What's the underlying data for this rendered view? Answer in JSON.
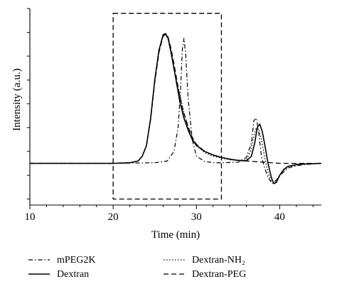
{
  "chart_data": {
    "type": "line",
    "title": "",
    "xlabel": "Time (min)",
    "ylabel": "Intensity (a.u.)",
    "xlim": [
      10,
      45
    ],
    "xticks": [
      10,
      20,
      30,
      40
    ],
    "ylim": [
      -0.35,
      1.3
    ],
    "y_tick_labels": false,
    "grid": false,
    "legend_position": "bottom",
    "highlight_box": {
      "x": [
        20,
        33
      ],
      "y": [
        -0.3,
        1.26
      ],
      "style": "dashed"
    },
    "series": [
      {
        "name": "mPEG2K",
        "style": "dash-dot",
        "x": [
          10,
          20,
          25,
          26.5,
          27.3,
          27.8,
          28.1,
          28.3,
          28.5,
          28.7,
          29,
          29.5,
          30,
          31,
          32,
          33,
          35,
          36,
          36.6,
          36.9,
          37.2,
          37.5,
          37.8,
          38.2,
          38.6,
          39.1,
          39.6,
          40.2,
          41,
          42,
          43,
          45
        ],
        "y": [
          0,
          0,
          0.005,
          0.02,
          0.1,
          0.3,
          0.62,
          0.95,
          1.05,
          0.92,
          0.55,
          0.2,
          0.06,
          0.015,
          0.006,
          0.004,
          0.01,
          0.05,
          0.17,
          0.36,
          0.38,
          0.25,
          0.06,
          -0.04,
          -0.12,
          -0.17,
          -0.14,
          -0.09,
          -0.04,
          -0.02,
          -0.01,
          0
        ]
      },
      {
        "name": "Dextran",
        "style": "solid",
        "x": [
          10,
          20,
          22,
          23,
          23.5,
          24,
          24.5,
          25,
          25.5,
          26,
          26.3,
          26.6,
          27,
          27.5,
          28,
          28.5,
          29,
          29.5,
          30,
          31,
          32,
          33,
          34,
          35,
          36,
          36.6,
          37,
          37.3,
          37.6,
          37.9,
          38.2,
          38.6,
          39,
          39.3,
          39.6,
          40,
          40.5,
          41,
          42,
          43,
          45
        ],
        "y": [
          0,
          0,
          0.005,
          0.02,
          0.06,
          0.15,
          0.38,
          0.7,
          0.95,
          1.08,
          1.09,
          1.05,
          0.92,
          0.72,
          0.52,
          0.38,
          0.28,
          0.2,
          0.15,
          0.1,
          0.07,
          0.05,
          0.035,
          0.025,
          0.02,
          0.06,
          0.17,
          0.3,
          0.33,
          0.27,
          0.16,
          0.0,
          -0.12,
          -0.17,
          -0.16,
          -0.1,
          -0.05,
          -0.025,
          -0.01,
          -0.005,
          0
        ]
      },
      {
        "name": "Dextran-NH₂",
        "style": "dotted",
        "x": [
          10,
          20,
          22,
          23,
          23.5,
          24,
          24.5,
          25,
          25.5,
          26,
          26.3,
          26.6,
          27,
          27.5,
          28,
          28.5,
          29,
          29.5,
          30,
          31,
          32,
          33,
          34,
          35,
          36,
          36.5,
          36.9,
          37.2,
          37.5,
          37.8,
          38.2,
          38.6,
          39,
          39.4,
          39.8,
          40.3,
          41,
          42,
          43,
          45
        ],
        "y": [
          0,
          0,
          0.005,
          0.02,
          0.06,
          0.15,
          0.38,
          0.7,
          0.95,
          1.07,
          1.08,
          1.04,
          0.9,
          0.72,
          0.58,
          0.42,
          0.3,
          0.21,
          0.15,
          0.09,
          0.06,
          0.045,
          0.03,
          0.025,
          0.03,
          0.1,
          0.23,
          0.3,
          0.28,
          0.2,
          0.05,
          -0.08,
          -0.15,
          -0.16,
          -0.12,
          -0.07,
          -0.03,
          -0.015,
          -0.005,
          0
        ]
      },
      {
        "name": "Dextran-PEG",
        "style": "dashed",
        "x": [
          10,
          20,
          22,
          23,
          23.5,
          24,
          24.5,
          25,
          25.5,
          26,
          26.3,
          26.6,
          27,
          27.5,
          28,
          28.5,
          29,
          29.5,
          30,
          31,
          32,
          33,
          34,
          35,
          36,
          37,
          38,
          39,
          40,
          42,
          45
        ],
        "y": [
          0,
          0,
          0.005,
          0.02,
          0.06,
          0.15,
          0.37,
          0.68,
          0.93,
          1.07,
          1.08,
          1.06,
          0.95,
          0.76,
          0.56,
          0.42,
          0.31,
          0.22,
          0.16,
          0.1,
          0.07,
          0.05,
          0.035,
          0.025,
          0.02,
          0.015,
          0.01,
          0.005,
          0,
          0,
          0
        ]
      }
    ]
  }
}
